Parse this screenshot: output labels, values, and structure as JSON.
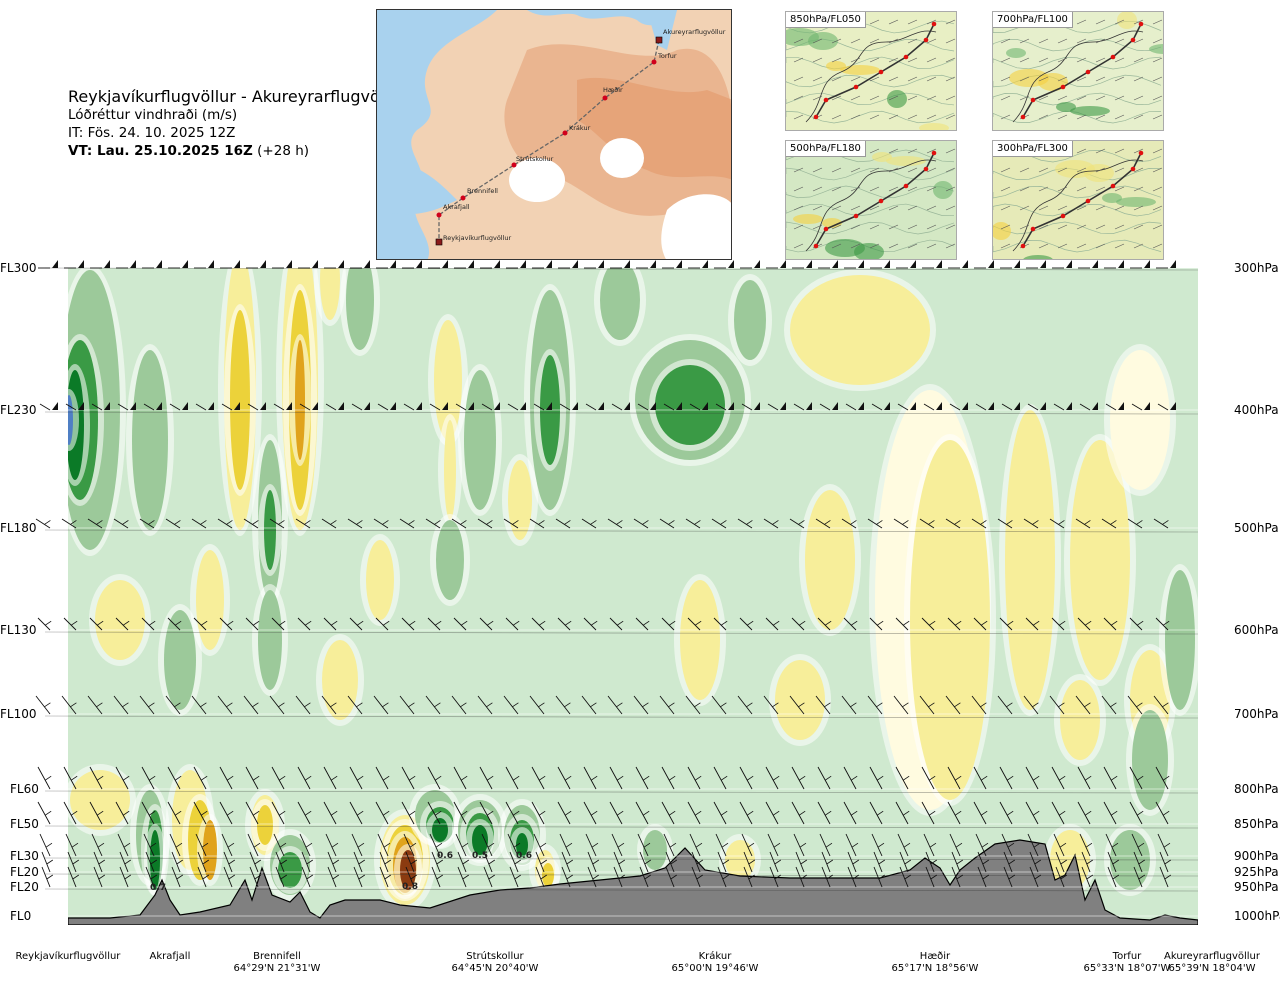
{
  "title": {
    "route": "Reykjavíkurflugvöllur - Akureyrarflugvöllur",
    "parameter": "Lóðréttur vindhraði (m/s)",
    "initial_time": "IT: Fös. 24. 10. 2025 12Z",
    "valid_prefix": "VT: Lau. 25.10.2025 16Z",
    "valid_offset": "(+28 h)"
  },
  "map": {
    "places": [
      {
        "name": "Akureyrarflugvöllur",
        "kind": "airport"
      },
      {
        "name": "Torfur",
        "kind": "point"
      },
      {
        "name": "Hæðir",
        "kind": "point"
      },
      {
        "name": "Krákur",
        "kind": "point"
      },
      {
        "name": "Strútskollur",
        "kind": "point"
      },
      {
        "name": "Brennifell",
        "kind": "point"
      },
      {
        "name": "Akrafjall",
        "kind": "point"
      },
      {
        "name": "Reykjavíkurflugvöllur",
        "kind": "airport"
      }
    ],
    "colors": {
      "sea": "#a9d2ee",
      "land": "#f2d2b4",
      "highland": "#e9a77a",
      "ice": "#ffffff",
      "route": "#666666",
      "point": "#d0001b"
    }
  },
  "mini_maps": [
    {
      "label": "850hPa/FL050"
    },
    {
      "label": "700hPa/FL100"
    },
    {
      "label": "500hPa/FL180"
    },
    {
      "label": "300hPa/FL300"
    }
  ],
  "chart_data": {
    "type": "heatmap",
    "flight_levels": [
      {
        "fl": "FL300",
        "hpa": "300hPa"
      },
      {
        "fl": "FL230",
        "hpa": "400hPa"
      },
      {
        "fl": "FL180",
        "hpa": "500hPa"
      },
      {
        "fl": "FL130",
        "hpa": "600hPa"
      },
      {
        "fl": "FL100",
        "hpa": "700hPa"
      },
      {
        "fl": "FL60",
        "hpa": "800hPa"
      },
      {
        "fl": "FL50",
        "hpa": "850hPa"
      },
      {
        "fl": "FL30",
        "hpa": "900hPa"
      },
      {
        "fl": "FL20",
        "hpa": "925hPa"
      },
      {
        "fl": "FL20",
        "hpa": "950hPa"
      },
      {
        "fl": "FL0",
        "hpa": "1000hPa"
      }
    ],
    "locations": [
      {
        "name": "Reykjavíkurflugvöllur",
        "coord": ""
      },
      {
        "name": "Akrafjall",
        "coord": ""
      },
      {
        "name": "Brennifell",
        "coord": "64°29'N 21°31'W"
      },
      {
        "name": "Strútskollur",
        "coord": "64°45'N 20°40'W"
      },
      {
        "name": "Krákur",
        "coord": "65°00'N 19°46'W"
      },
      {
        "name": "Hæðir",
        "coord": "65°17'N 18°56'W"
      },
      {
        "name": "Torfur",
        "coord": "65°33'N 18°07'W"
      },
      {
        "name": "Akureyrarflugvöllur",
        "coord": "65°39'N 18°04'W"
      }
    ],
    "value_labels": [
      "0.7",
      "0.8",
      "0.6",
      "0.5",
      "0.6"
    ],
    "colors": {
      "down_strong": "#4f7fc4",
      "down_3": "#0b7a27",
      "down_2": "#3a9a45",
      "down_1": "#9cc99a",
      "neutral_down": "#cfe9cf",
      "neutral_up": "#fffbe0",
      "up_1": "#f7ee9a",
      "up_2": "#ecd23a",
      "up_3": "#e0a31c",
      "up_strong": "#8b3b10",
      "terrain": "#808080"
    },
    "grid": false
  }
}
